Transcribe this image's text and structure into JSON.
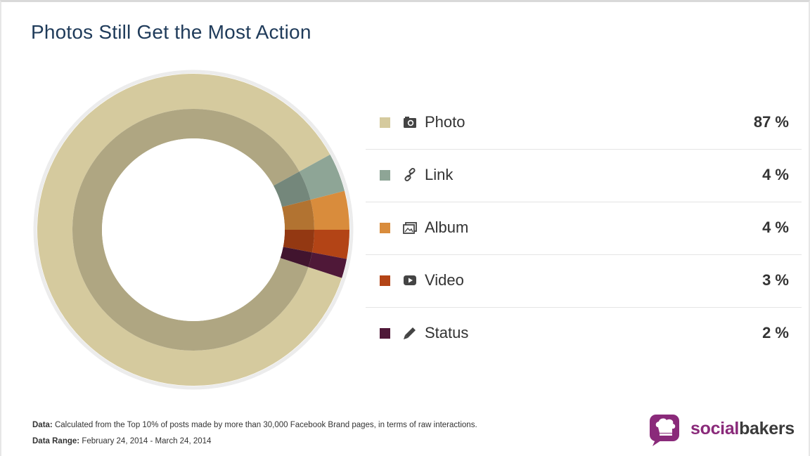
{
  "title": "Photos Still Get the Most Action",
  "colors": {
    "Photo": "#d5ca9e",
    "Link": "#8ea596",
    "Album": "#d98c3c",
    "Video": "#b34416",
    "Status": "#4f1838"
  },
  "legend": [
    {
      "label": "Photo",
      "value": "87 %",
      "icon": "camera-icon"
    },
    {
      "label": "Link",
      "value": "4 %",
      "icon": "link-icon"
    },
    {
      "label": "Album",
      "value": "4 %",
      "icon": "album-icon"
    },
    {
      "label": "Video",
      "value": "3 %",
      "icon": "video-icon"
    },
    {
      "label": "Status",
      "value": "2 %",
      "icon": "pencil-icon"
    }
  ],
  "footer": {
    "data_label": "Data:",
    "data_text": "Calculated from the Top 10% of posts made by more than 30,000 Facebook Brand pages, in terms of raw interactions.",
    "range_label": "Data Range:",
    "range_text": "February 24, 2014 - March 24, 2014"
  },
  "logo": {
    "part1": "social",
    "part2": "bakers"
  },
  "chart_data": {
    "type": "pie",
    "categories": [
      "Photo",
      "Link",
      "Album",
      "Video",
      "Status"
    ],
    "values": [
      87,
      4,
      4,
      3,
      2
    ],
    "title": "Photos Still Get the Most Action"
  }
}
